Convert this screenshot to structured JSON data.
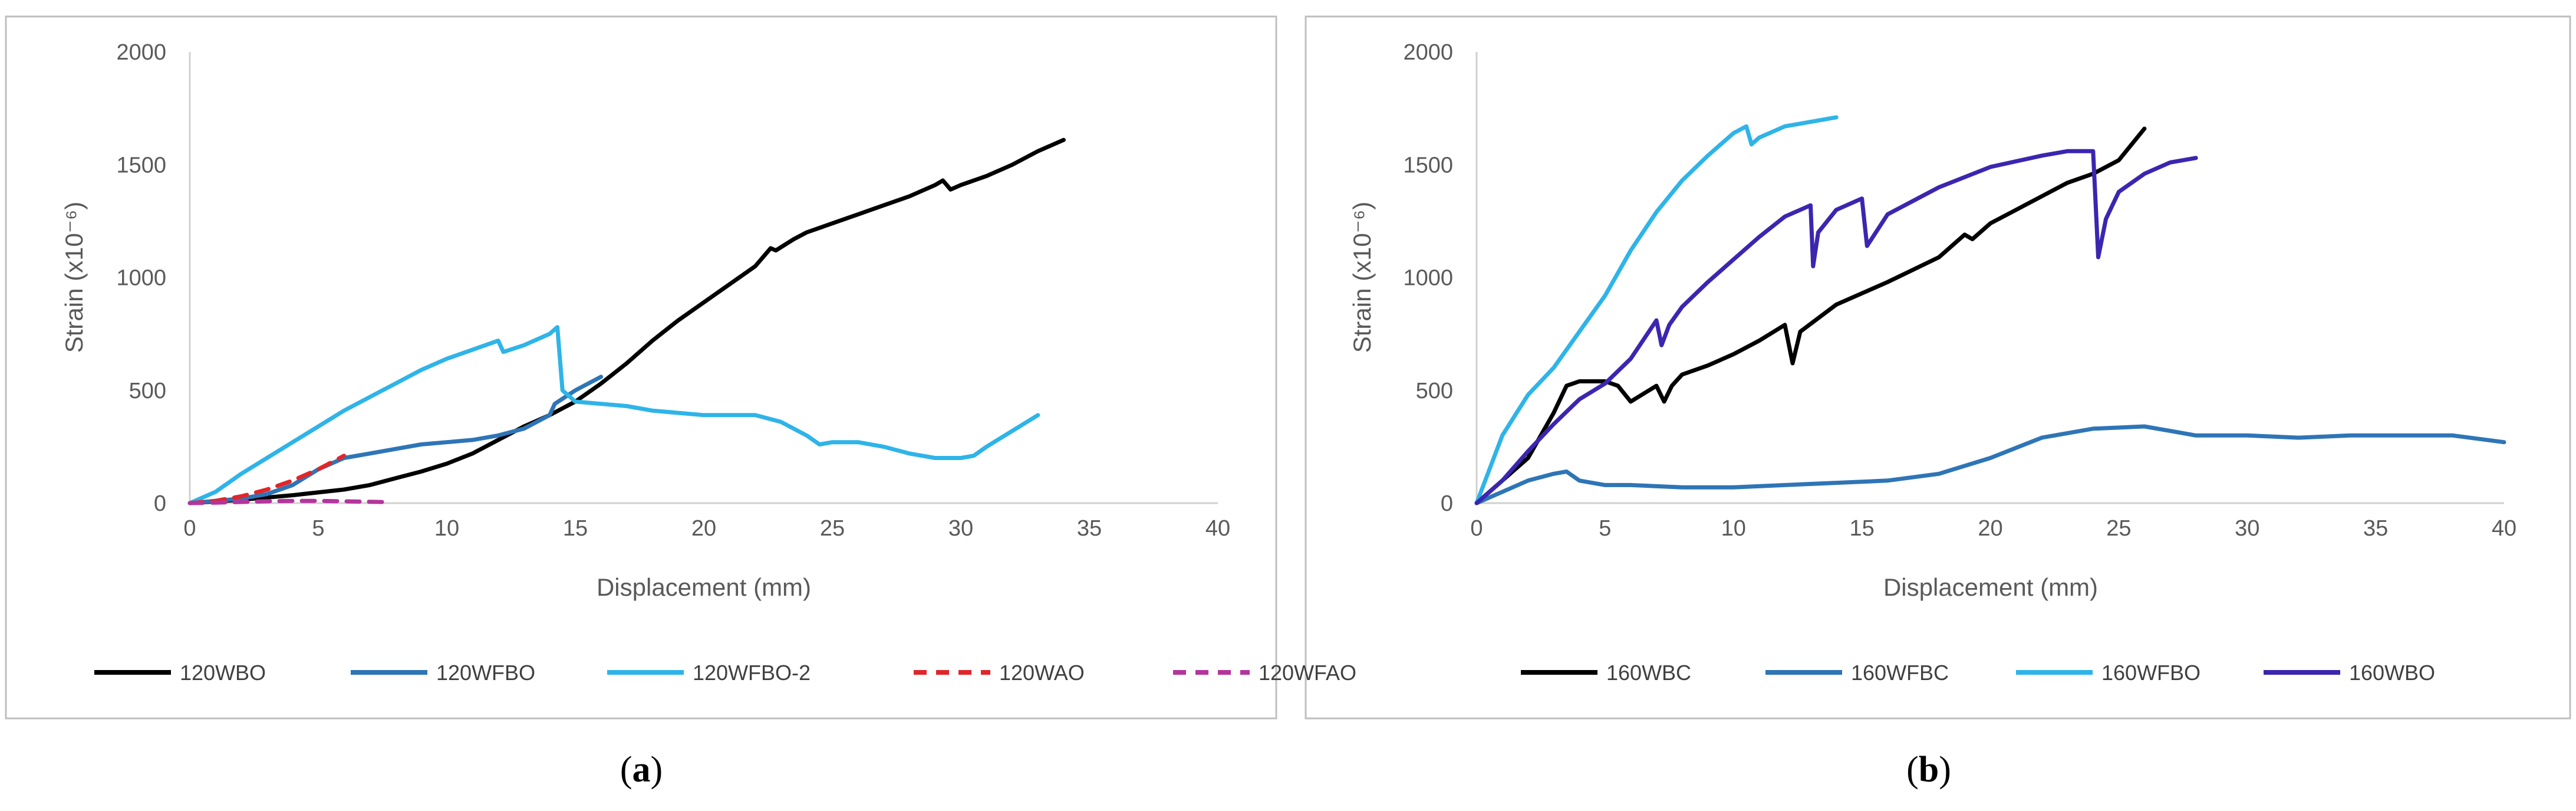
{
  "chart_data": [
    {
      "type": "line",
      "panel_label": "(a)",
      "panel_letter": "a",
      "title": "",
      "xlabel": "Displacement (mm)",
      "ylabel": "Strain (x10⁻⁶)",
      "xlim": [
        0,
        40
      ],
      "ylim": [
        0,
        2000
      ],
      "xticks": [
        0,
        5,
        10,
        15,
        20,
        25,
        30,
        35,
        40
      ],
      "yticks": [
        0,
        500,
        1000,
        1500,
        2000
      ],
      "legend_position": "bottom",
      "series": [
        {
          "name": "120WBO",
          "color": "#000000",
          "dash": "solid",
          "x": [
            0,
            2,
            4,
            6,
            7,
            8,
            9,
            10,
            11,
            12,
            13,
            14,
            15,
            16,
            17,
            18,
            19,
            20,
            21,
            22,
            22.6,
            22.8,
            23.5,
            24,
            25,
            26,
            27,
            28,
            29,
            29.3,
            29.6,
            30,
            31,
            32,
            33,
            34
          ],
          "y": [
            0,
            15,
            35,
            60,
            80,
            110,
            140,
            175,
            220,
            280,
            340,
            390,
            450,
            530,
            620,
            720,
            810,
            890,
            970,
            1050,
            1130,
            1120,
            1170,
            1200,
            1240,
            1280,
            1320,
            1360,
            1410,
            1430,
            1390,
            1410,
            1450,
            1500,
            1560,
            1610
          ]
        },
        {
          "name": "120WFBO",
          "color": "#2e75b6",
          "dash": "solid",
          "x": [
            0,
            2,
            3,
            4,
            5,
            6,
            7,
            8,
            9,
            10,
            11,
            12,
            13,
            14,
            14.2,
            15,
            16
          ],
          "y": [
            0,
            20,
            40,
            80,
            150,
            200,
            220,
            240,
            260,
            270,
            280,
            300,
            330,
            390,
            440,
            500,
            560
          ]
        },
        {
          "name": "120WFBO-2",
          "color": "#2eb4e8",
          "dash": "solid",
          "x": [
            0,
            1,
            2,
            3,
            4,
            5,
            6,
            7,
            8,
            9,
            10,
            11,
            12,
            12.2,
            13,
            14,
            14.3,
            14.5,
            15,
            16,
            17,
            18,
            19,
            20,
            21,
            22,
            23,
            24,
            24.5,
            25,
            26,
            27,
            28,
            29,
            30,
            30.5,
            31,
            32,
            33
          ],
          "y": [
            0,
            50,
            130,
            200,
            270,
            340,
            410,
            470,
            530,
            590,
            640,
            680,
            720,
            670,
            700,
            750,
            780,
            500,
            450,
            440,
            430,
            410,
            400,
            390,
            390,
            390,
            360,
            300,
            260,
            270,
            270,
            250,
            220,
            200,
            200,
            210,
            250,
            320,
            390
          ]
        },
        {
          "name": "120WAO",
          "color": "#e0262b",
          "dash": "dash",
          "x": [
            0,
            1,
            2,
            3,
            4,
            5,
            6
          ],
          "y": [
            0,
            10,
            30,
            60,
            100,
            150,
            210
          ]
        },
        {
          "name": "120WFAO",
          "color": "#b4359d",
          "dash": "dash",
          "x": [
            0,
            1,
            2,
            3,
            4,
            5,
            6,
            7,
            7.5
          ],
          "y": [
            0,
            2,
            5,
            8,
            10,
            10,
            8,
            6,
            5
          ]
        }
      ]
    },
    {
      "type": "line",
      "panel_label": "(b)",
      "panel_letter": "b",
      "title": "",
      "xlabel": "Displacement (mm)",
      "ylabel": "Strain (x10⁻⁶)",
      "xlim": [
        0,
        40
      ],
      "ylim": [
        0,
        2000
      ],
      "xticks": [
        0,
        5,
        10,
        15,
        20,
        25,
        30,
        35,
        40
      ],
      "yticks": [
        0,
        500,
        1000,
        1500,
        2000
      ],
      "legend_position": "bottom",
      "series": [
        {
          "name": "160WBC",
          "color": "#000000",
          "dash": "solid",
          "x": [
            0,
            1,
            2,
            3,
            3.5,
            4,
            5,
            5.5,
            6,
            7,
            7.3,
            7.6,
            8,
            9,
            10,
            11,
            12,
            12.3,
            12.6,
            14,
            16,
            18,
            19,
            19.3,
            20,
            21,
            22,
            23,
            24,
            25,
            26
          ],
          "y": [
            0,
            100,
            200,
            400,
            520,
            540,
            540,
            520,
            450,
            520,
            450,
            520,
            570,
            610,
            660,
            720,
            790,
            620,
            760,
            880,
            980,
            1090,
            1190,
            1170,
            1240,
            1300,
            1360,
            1420,
            1460,
            1520,
            1660
          ]
        },
        {
          "name": "160WFBC",
          "color": "#2e75b6",
          "dash": "solid",
          "x": [
            0,
            1,
            2,
            3,
            3.5,
            4,
            5,
            6,
            8,
            10,
            12,
            14,
            16,
            18,
            20,
            22,
            24,
            26,
            27,
            28,
            30,
            32,
            34,
            36,
            38,
            40
          ],
          "y": [
            0,
            50,
            100,
            130,
            140,
            100,
            80,
            80,
            70,
            70,
            80,
            90,
            100,
            130,
            200,
            290,
            330,
            340,
            320,
            300,
            300,
            290,
            300,
            300,
            300,
            270
          ]
        },
        {
          "name": "160WFBO",
          "color": "#2eb4e8",
          "dash": "solid",
          "x": [
            0,
            1,
            2,
            3,
            4,
            5,
            6,
            7,
            8,
            9,
            10,
            10.5,
            10.7,
            11,
            12,
            13,
            14
          ],
          "y": [
            0,
            300,
            480,
            600,
            760,
            920,
            1120,
            1290,
            1430,
            1540,
            1640,
            1670,
            1590,
            1620,
            1670,
            1690,
            1710
          ]
        },
        {
          "name": "160WBO",
          "color": "#3b26b0",
          "dash": "solid",
          "x": [
            0,
            1,
            2,
            3,
            4,
            5,
            6,
            7,
            7.2,
            7.5,
            8,
            9,
            10,
            11,
            12,
            13,
            13.1,
            13.3,
            14,
            15,
            15.2,
            16,
            18,
            20,
            22,
            23,
            24,
            24.2,
            24.5,
            25,
            26,
            27,
            28
          ],
          "y": [
            0,
            100,
            230,
            350,
            460,
            530,
            640,
            810,
            700,
            790,
            870,
            980,
            1080,
            1180,
            1270,
            1320,
            1050,
            1200,
            1300,
            1350,
            1140,
            1280,
            1400,
            1490,
            1540,
            1560,
            1560,
            1090,
            1260,
            1380,
            1460,
            1510,
            1530
          ]
        }
      ]
    }
  ]
}
